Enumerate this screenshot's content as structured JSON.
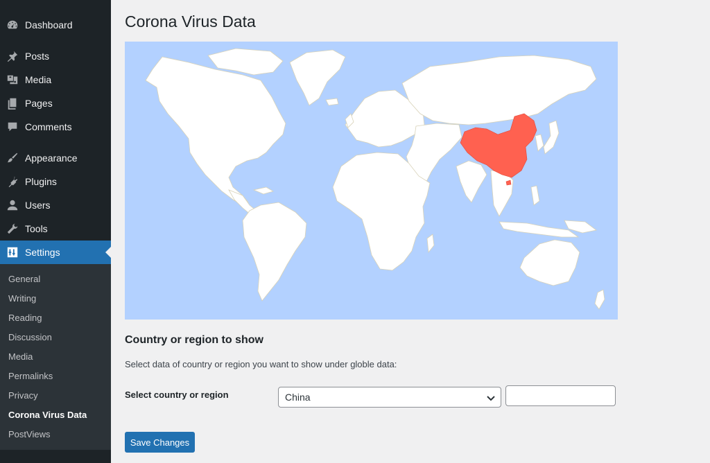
{
  "sidebar": {
    "menu": [
      {
        "label": "Dashboard",
        "icon": "dashboard-icon"
      },
      {
        "label": "Posts",
        "icon": "pushpin-icon"
      },
      {
        "label": "Media",
        "icon": "media-icon"
      },
      {
        "label": "Pages",
        "icon": "pages-icon"
      },
      {
        "label": "Comments",
        "icon": "comment-icon"
      },
      {
        "label": "Appearance",
        "icon": "paintbrush-icon"
      },
      {
        "label": "Plugins",
        "icon": "plugin-icon"
      },
      {
        "label": "Users",
        "icon": "user-icon"
      },
      {
        "label": "Tools",
        "icon": "wrench-icon"
      },
      {
        "label": "Settings",
        "icon": "settings-icon"
      }
    ],
    "submenu": [
      "General",
      "Writing",
      "Reading",
      "Discussion",
      "Media",
      "Permalinks",
      "Privacy",
      "Corona Virus Data",
      "PostViews"
    ],
    "active_menu": "Settings",
    "current_submenu": "Corona Virus Data"
  },
  "page": {
    "title": "Corona Virus Data",
    "section_title": "Country or region to show",
    "section_desc": "Select data of country or region you want to show under globle data:",
    "field_label": "Select country or region",
    "selected_country": "China",
    "extra_input_value": "",
    "save_label": "Save Changes"
  },
  "map": {
    "highlighted_country": "China",
    "colors": {
      "ocean": "#b3d1ff",
      "land": "#ffffff",
      "highlight": "#ff6150"
    }
  },
  "colors": {
    "sidebar": "#1d2327",
    "submenu": "#2c3338",
    "accent": "#2271b1",
    "background": "#f0f0f1"
  }
}
